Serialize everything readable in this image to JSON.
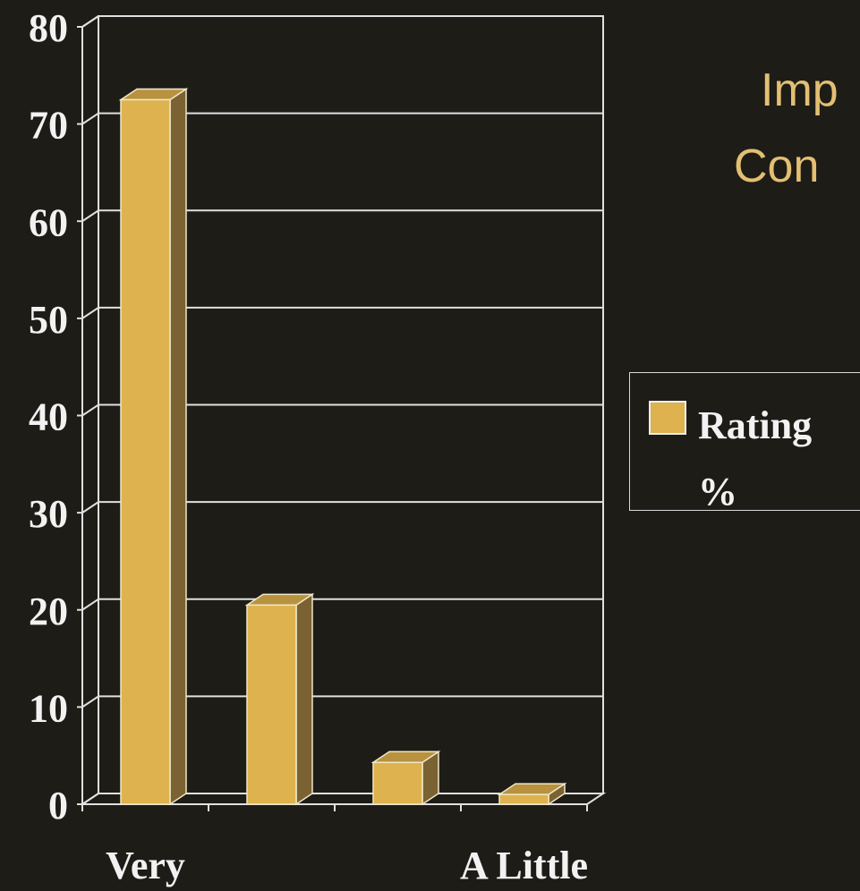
{
  "chart_data": {
    "type": "bar3d",
    "title_lines": [
      "Imp",
      "Con"
    ],
    "categories": [
      "Very",
      null,
      null,
      "A Little"
    ],
    "series": [
      {
        "name": "Rating %",
        "color": "#deb24e",
        "values": [
          72.5,
          20.5,
          4.3,
          1.0
        ]
      }
    ],
    "ylim": [
      0,
      80
    ],
    "yticks": [
      0,
      10,
      20,
      30,
      40,
      50,
      60,
      70,
      80
    ],
    "grid": true,
    "legend": "right"
  }
}
